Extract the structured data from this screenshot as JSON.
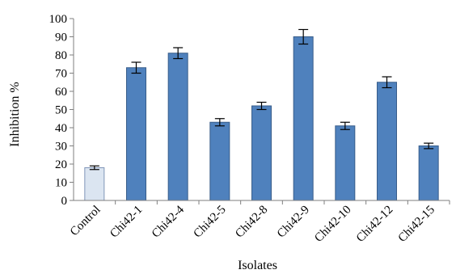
{
  "chart_data": {
    "type": "bar",
    "title": "",
    "xlabel": "Isolates",
    "ylabel": "Inhibition %",
    "ylim": [
      0,
      100
    ],
    "yticks": [
      0,
      10,
      20,
      30,
      40,
      50,
      60,
      70,
      80,
      90,
      100
    ],
    "grid": false,
    "legend": "none",
    "categories": [
      "Control",
      "Chi42-1",
      "Chi42-4",
      "Chi42-5",
      "Chi42-8",
      "Chi42-9",
      "Chi42-10",
      "Chi42-12",
      "Chi42-15"
    ],
    "values": [
      18,
      73,
      81,
      43,
      52,
      90,
      41,
      65,
      30
    ],
    "errors": [
      1,
      3,
      3,
      2,
      2,
      4,
      2,
      3,
      1.5
    ],
    "colors": {
      "control_fill": "#dbe5f1",
      "control_stroke": "#7f95b8",
      "bar_fill": "#4f81bd",
      "bar_stroke": "#385d8a"
    }
  }
}
